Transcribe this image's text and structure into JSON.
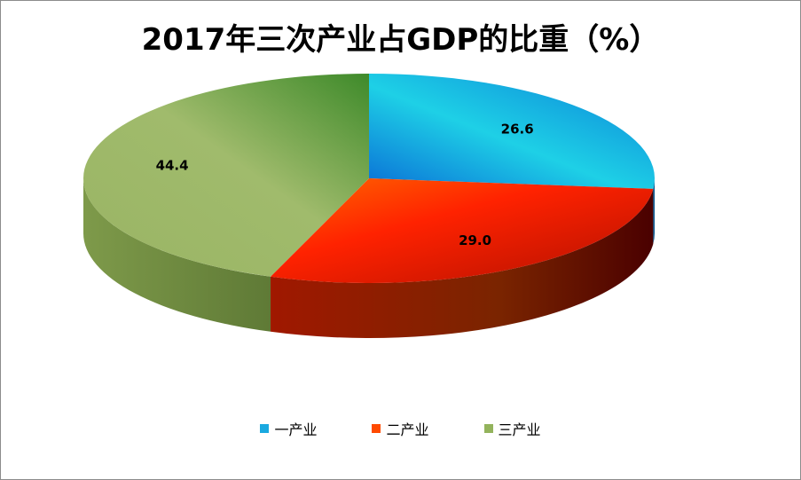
{
  "chart_data": {
    "type": "pie",
    "title": "2017年三次产业占GDP的比重（%）",
    "categories": [
      "一产业",
      "二产业",
      "三产业"
    ],
    "values": [
      26.6,
      29.0,
      44.4
    ],
    "value_labels": [
      "26.6",
      "29.0",
      "44.4"
    ],
    "colors": [
      "#1aa9e0",
      "#ff4a00",
      "#93b35c"
    ],
    "legend_position": "bottom",
    "style": "3d"
  }
}
